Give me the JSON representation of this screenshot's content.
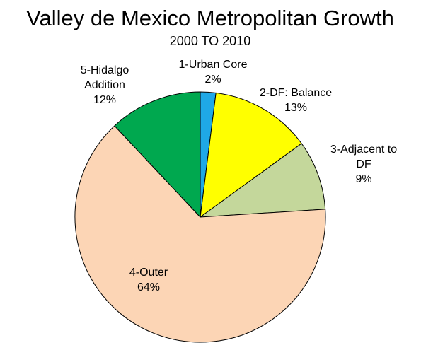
{
  "chart_data": {
    "type": "pie",
    "title": "Valley de Mexico Metropolitan Growth",
    "subtitle": "2000 TO 2010",
    "slices": [
      {
        "label_lines": [
          "1-Urban Core"
        ],
        "value_text": "2%",
        "value": 2,
        "color": "#1fa8e6"
      },
      {
        "label_lines": [
          "2-DF: Balance"
        ],
        "value_text": "13%",
        "value": 13,
        "color": "#ffff00"
      },
      {
        "label_lines": [
          "3-Adjacent to",
          "DF"
        ],
        "value_text": "9%",
        "value": 9,
        "color": "#c4d79b"
      },
      {
        "label_lines": [
          "4-Outer"
        ],
        "value_text": "64%",
        "value": 64,
        "color": "#fcd5b5"
      },
      {
        "label_lines": [
          "5-Hidalgo",
          "Addition"
        ],
        "value_text": "12%",
        "value": 12,
        "color": "#00a84f"
      }
    ],
    "start_angle": "12 o'clock",
    "direction": "clockwise",
    "legend": "none"
  }
}
